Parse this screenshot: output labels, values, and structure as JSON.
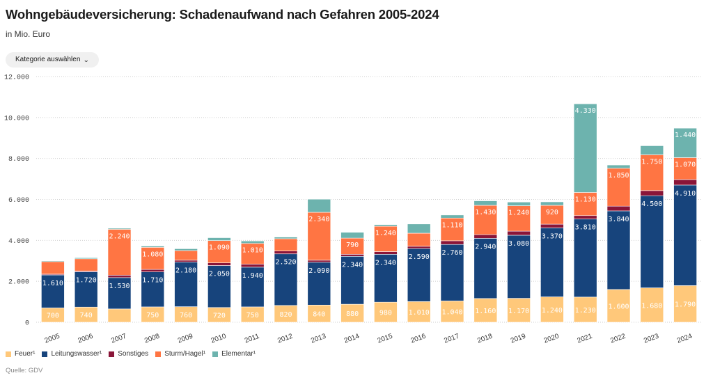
{
  "header": {
    "title": "Wohngebäudeversicherung: Schadenaufwand nach Gefahren 2005-2024",
    "subtitle": "in Mio. Euro"
  },
  "controls": {
    "category_dropdown_label": "Kategorie auswählen",
    "category_dropdown_icon": "chevron-down-icon"
  },
  "footer": {
    "source": "Quelle: GDV"
  },
  "chart_data": {
    "type": "bar",
    "stacked": true,
    "title": "Wohngebäudeversicherung: Schadenaufwand nach Gefahren 2005-2024",
    "subtitle": "in Mio. Euro",
    "xlabel": "",
    "ylabel": "",
    "ylim": [
      0,
      12000
    ],
    "yticks": [
      0,
      2000,
      4000,
      6000,
      8000,
      10000,
      12000
    ],
    "ytick_labels": [
      "0",
      "2.000",
      "4.000",
      "6.000",
      "8.000",
      "10.000",
      "12.000"
    ],
    "grid": true,
    "legend_position": "bottom-left",
    "categories": [
      "2005",
      "2006",
      "2007",
      "2008",
      "2009",
      "2010",
      "2011",
      "2012",
      "2013",
      "2014",
      "2015",
      "2016",
      "2017",
      "2018",
      "2019",
      "2020",
      "2021",
      "2022",
      "2023",
      "2024"
    ],
    "series": [
      {
        "name": "Feuer¹",
        "color": "#ffc87a",
        "values": [
          700,
          740,
          650,
          750,
          760,
          720,
          750,
          820,
          840,
          880,
          980,
          1010,
          1040,
          1160,
          1170,
          1240,
          1230,
          1600,
          1680,
          1790
        ],
        "labels": [
          "700",
          "740",
          "",
          "750",
          "760",
          "720",
          "750",
          "820",
          "840",
          "880",
          "980",
          "1.010",
          "1.040",
          "1.160",
          "1.170",
          "1.240",
          "1.230",
          "1.600",
          "1.680",
          "1.790"
        ]
      },
      {
        "name": "Leitungswasser¹",
        "color": "#17447c",
        "values": [
          1610,
          1720,
          1530,
          1710,
          2180,
          2050,
          1940,
          2520,
          2090,
          2340,
          2340,
          2590,
          2760,
          2940,
          3080,
          3370,
          3810,
          3840,
          4500,
          4910
        ],
        "labels": [
          "1.610",
          "1.720",
          "1.530",
          "1.710",
          "2.180",
          "2.050",
          "1.940",
          "2.520",
          "2.090",
          "2.340",
          "2.340",
          "2.590",
          "2.760",
          "2.940",
          "3.080",
          "3.370",
          "3.810",
          "3.840",
          "4.500",
          "4.910"
        ]
      },
      {
        "name": "Sonstiges",
        "color": "#8a1538",
        "values": [
          40,
          40,
          120,
          120,
          90,
          130,
          150,
          140,
          100,
          100,
          130,
          110,
          180,
          180,
          200,
          180,
          170,
          230,
          250,
          270
        ],
        "labels": [
          "",
          "",
          "",
          "",
          "",
          "",
          "",
          "",
          "",
          "",
          "",
          "",
          "",
          "",
          "",
          "",
          "",
          "",
          "",
          ""
        ]
      },
      {
        "name": "Sturm/Hagel¹",
        "color": "#ff7543",
        "values": [
          610,
          600,
          2240,
          1080,
          470,
          1090,
          1010,
          600,
          2340,
          790,
          1240,
          640,
          1110,
          1430,
          1240,
          920,
          1130,
          1850,
          1750,
          1070
        ],
        "labels": [
          "",
          "",
          "2.240",
          "1.080",
          "",
          "1.090",
          "1.010",
          "",
          "2.340",
          "790",
          "1.240",
          "",
          "1.110",
          "1.430",
          "1.240",
          "920",
          "1.130",
          "1.850",
          "1.750",
          "1.070"
        ]
      },
      {
        "name": "Elementar¹",
        "color": "#6db3ae",
        "values": [
          40,
          50,
          50,
          60,
          90,
          140,
          120,
          80,
          640,
          280,
          80,
          450,
          150,
          220,
          180,
          170,
          4330,
          160,
          440,
          1440
        ],
        "labels": [
          "",
          "",
          "",
          "",
          "",
          "",
          "",
          "",
          "",
          "",
          "",
          "",
          "",
          "",
          "",
          "",
          "4.330",
          "",
          "",
          "1.440"
        ]
      }
    ]
  }
}
